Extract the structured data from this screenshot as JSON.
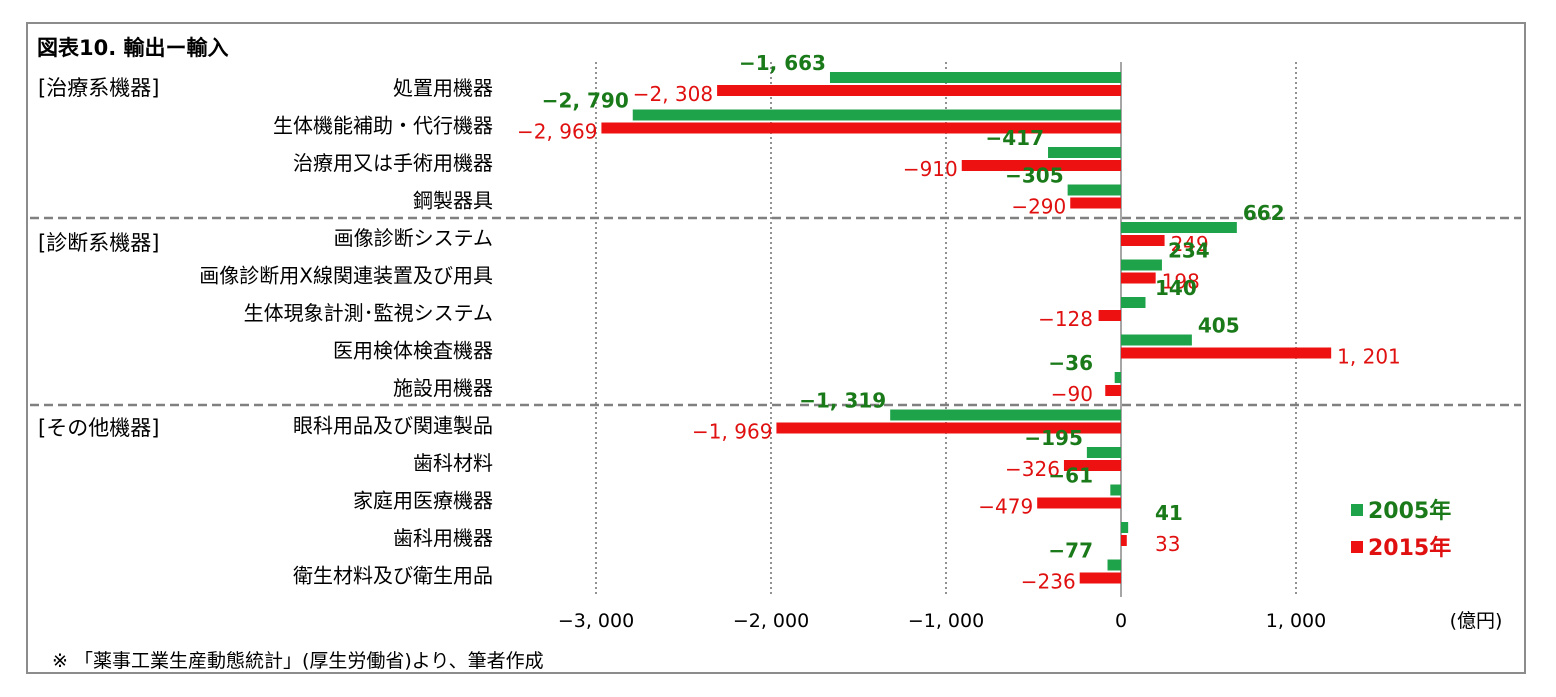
{
  "chart_data": {
    "type": "bar",
    "orientation": "horizontal",
    "title": "図表10. 輸出ー輸入",
    "unit_label": "(億円)",
    "source_note": "※ 「薬事工業生産動態統計」(厚生労働省)より、筆者作成",
    "xlim": [
      -3000,
      1200
    ],
    "x_ticks": [
      {
        "value": -3000,
        "label": "−3, 000"
      },
      {
        "value": -2000,
        "label": "−2, 000"
      },
      {
        "value": -1000,
        "label": "−1, 000"
      },
      {
        "value": 0,
        "label": "0"
      },
      {
        "value": 1000,
        "label": "1, 000"
      }
    ],
    "grid": true,
    "legend": {
      "position": "right",
      "entries": [
        {
          "label": "2005年",
          "color": "#1fa34a"
        },
        {
          "label": "2015年",
          "color": "#ee1111"
        }
      ]
    },
    "groups": [
      {
        "label": "[治療系機器]",
        "categories": [
          {
            "name": "処置用機器",
            "v2005": -1663,
            "v2015": -2308,
            "l2005": "−1, 663",
            "l2015": "−2, 308"
          },
          {
            "name": "生体機能補助・代行機器",
            "v2005": -2790,
            "v2015": -2969,
            "l2005": "−2, 790",
            "l2015": "−2, 969"
          },
          {
            "name": "治療用又は手術用機器",
            "v2005": -417,
            "v2015": -910,
            "l2005": "−417",
            "l2015": "−910"
          },
          {
            "name": "鋼製器具",
            "v2005": -305,
            "v2015": -290,
            "l2005": "−305",
            "l2015": "−290"
          }
        ]
      },
      {
        "label": "[診断系機器]",
        "categories": [
          {
            "name": "画像診断システム",
            "v2005": 662,
            "v2015": 249,
            "l2005": "662",
            "l2015": "249"
          },
          {
            "name": "画像診断用X線関連装置及び用具",
            "v2005": 234,
            "v2015": 198,
            "l2005": "234",
            "l2015": "198"
          },
          {
            "name": "生体現象計測･監視システム",
            "v2005": 140,
            "v2015": -128,
            "l2005": "140",
            "l2015": "−128"
          },
          {
            "name": "医用検体検査機器",
            "v2005": 405,
            "v2015": 1201,
            "l2005": "405",
            "l2015": "1, 201"
          },
          {
            "name": "施設用機器",
            "v2005": -36,
            "v2015": -90,
            "l2005": "−36",
            "l2015": "−90"
          }
        ]
      },
      {
        "label": "[その他機器]",
        "categories": [
          {
            "name": "眼科用品及び関連製品",
            "v2005": -1319,
            "v2015": -1969,
            "l2005": "−1, 319",
            "l2015": "−1, 969"
          },
          {
            "name": "歯科材料",
            "v2005": -195,
            "v2015": -326,
            "l2005": "−195",
            "l2015": "−326"
          },
          {
            "name": "家庭用医療機器",
            "v2005": -61,
            "v2015": -479,
            "l2005": "−61",
            "l2015": "−479"
          },
          {
            "name": "歯科用機器",
            "v2005": 41,
            "v2015": 33,
            "l2005": "41",
            "l2015": "33"
          },
          {
            "name": "衛生材料及び衛生用品",
            "v2005": -77,
            "v2015": -236,
            "l2005": "−77",
            "l2015": "−236"
          }
        ]
      }
    ]
  }
}
